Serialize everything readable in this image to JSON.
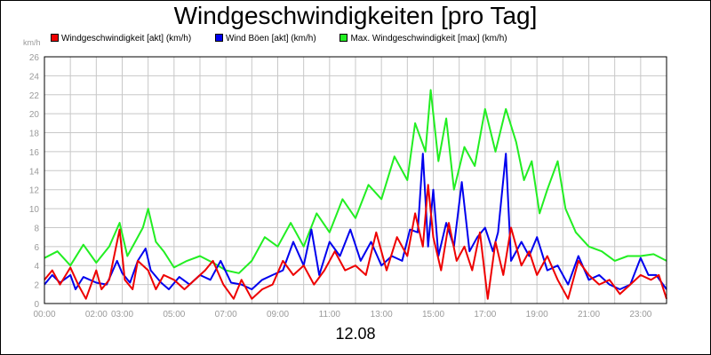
{
  "chart_data": {
    "type": "line",
    "title": "Windgeschwindigkeiten [pro Tag]",
    "date_label": "12.08",
    "y_unit": "km/h",
    "ylim": [
      0,
      26
    ],
    "y_ticks": [
      "0",
      "2",
      "4",
      "6",
      "8",
      "10",
      "12",
      "14",
      "16",
      "18",
      "20",
      "22",
      "24",
      "26"
    ],
    "x_range_hours": [
      0,
      24
    ],
    "x_ticks": [
      {
        "label": "00:00",
        "h": 0
      },
      {
        "label": "02:00",
        "h": 2
      },
      {
        "label": "03:00",
        "h": 3
      },
      {
        "label": "05:00",
        "h": 5
      },
      {
        "label": "07:00",
        "h": 7
      },
      {
        "label": "09:00",
        "h": 9
      },
      {
        "label": "11:00",
        "h": 11
      },
      {
        "label": "13:00",
        "h": 13
      },
      {
        "label": "15:00",
        "h": 15
      },
      {
        "label": "17:00",
        "h": 17
      },
      {
        "label": "19:00",
        "h": 19
      },
      {
        "label": "21:00",
        "h": 21
      },
      {
        "label": "23:00",
        "h": 23
      }
    ],
    "grid": true,
    "legend_position": "top-left",
    "series": [
      {
        "name": "Max. Windgeschwindigkeit [max] (km/h)",
        "color": "#22ee22",
        "points": [
          [
            0,
            4.8
          ],
          [
            0.5,
            5.5
          ],
          [
            1,
            4.0
          ],
          [
            1.5,
            6.2
          ],
          [
            2,
            4.3
          ],
          [
            2.5,
            6.0
          ],
          [
            2.9,
            8.5
          ],
          [
            3.2,
            5.0
          ],
          [
            3.5,
            6.5
          ],
          [
            3.8,
            8.0
          ],
          [
            4.0,
            10.0
          ],
          [
            4.3,
            6.5
          ],
          [
            4.6,
            5.5
          ],
          [
            5.0,
            3.8
          ],
          [
            5.5,
            4.5
          ],
          [
            6.0,
            5.0
          ],
          [
            6.5,
            4.3
          ],
          [
            7.0,
            3.5
          ],
          [
            7.5,
            3.2
          ],
          [
            8.0,
            4.5
          ],
          [
            8.5,
            7.0
          ],
          [
            9.0,
            6.0
          ],
          [
            9.5,
            8.5
          ],
          [
            10.0,
            6.0
          ],
          [
            10.5,
            9.5
          ],
          [
            11.0,
            7.5
          ],
          [
            11.5,
            11.0
          ],
          [
            12.0,
            9.0
          ],
          [
            12.5,
            12.5
          ],
          [
            13.0,
            11.0
          ],
          [
            13.5,
            15.5
          ],
          [
            14.0,
            13.0
          ],
          [
            14.3,
            19.0
          ],
          [
            14.7,
            16.0
          ],
          [
            14.9,
            22.5
          ],
          [
            15.2,
            15.0
          ],
          [
            15.5,
            19.5
          ],
          [
            15.8,
            12.0
          ],
          [
            16.2,
            16.5
          ],
          [
            16.6,
            14.5
          ],
          [
            17.0,
            20.5
          ],
          [
            17.4,
            16.0
          ],
          [
            17.8,
            20.5
          ],
          [
            18.2,
            17.0
          ],
          [
            18.5,
            13.0
          ],
          [
            18.8,
            15.0
          ],
          [
            19.1,
            9.5
          ],
          [
            19.4,
            12.0
          ],
          [
            19.8,
            15.0
          ],
          [
            20.1,
            10.0
          ],
          [
            20.5,
            7.5
          ],
          [
            21.0,
            6.0
          ],
          [
            21.5,
            5.5
          ],
          [
            22.0,
            4.5
          ],
          [
            22.5,
            5.0
          ],
          [
            23.0,
            5.0
          ],
          [
            23.5,
            5.2
          ],
          [
            24.0,
            4.5
          ]
        ]
      },
      {
        "name": "Wind Böen [akt] (km/h)",
        "color": "#0000ee",
        "points": [
          [
            0,
            2.0
          ],
          [
            0.3,
            3.0
          ],
          [
            0.6,
            2.2
          ],
          [
            1.0,
            3.0
          ],
          [
            1.2,
            1.5
          ],
          [
            1.5,
            2.8
          ],
          [
            2.0,
            2.2
          ],
          [
            2.4,
            2.0
          ],
          [
            2.8,
            4.5
          ],
          [
            3.0,
            3.2
          ],
          [
            3.3,
            2.2
          ],
          [
            3.6,
            4.5
          ],
          [
            3.9,
            5.8
          ],
          [
            4.1,
            3.5
          ],
          [
            4.5,
            2.2
          ],
          [
            4.8,
            1.5
          ],
          [
            5.2,
            2.8
          ],
          [
            5.6,
            2.0
          ],
          [
            6.0,
            3.0
          ],
          [
            6.4,
            2.5
          ],
          [
            6.8,
            4.5
          ],
          [
            7.2,
            2.2
          ],
          [
            7.6,
            2.0
          ],
          [
            8.0,
            1.5
          ],
          [
            8.4,
            2.5
          ],
          [
            8.8,
            3.0
          ],
          [
            9.2,
            3.5
          ],
          [
            9.6,
            6.5
          ],
          [
            10.0,
            4.0
          ],
          [
            10.3,
            7.8
          ],
          [
            10.6,
            3.0
          ],
          [
            11.0,
            6.5
          ],
          [
            11.4,
            5.0
          ],
          [
            11.8,
            7.8
          ],
          [
            12.2,
            4.5
          ],
          [
            12.6,
            6.5
          ],
          [
            13.0,
            4.0
          ],
          [
            13.4,
            5.0
          ],
          [
            13.8,
            4.5
          ],
          [
            14.1,
            7.8
          ],
          [
            14.4,
            7.5
          ],
          [
            14.6,
            15.8
          ],
          [
            14.8,
            6.0
          ],
          [
            15.0,
            12.0
          ],
          [
            15.2,
            5.0
          ],
          [
            15.5,
            8.5
          ],
          [
            15.8,
            6.0
          ],
          [
            16.1,
            12.8
          ],
          [
            16.4,
            5.5
          ],
          [
            16.7,
            7.0
          ],
          [
            17.0,
            8.0
          ],
          [
            17.3,
            5.5
          ],
          [
            17.5,
            7.5
          ],
          [
            17.8,
            15.8
          ],
          [
            18.0,
            4.5
          ],
          [
            18.4,
            6.5
          ],
          [
            18.7,
            5.0
          ],
          [
            19.0,
            7.0
          ],
          [
            19.4,
            3.5
          ],
          [
            19.8,
            4.0
          ],
          [
            20.2,
            2.0
          ],
          [
            20.6,
            5.0
          ],
          [
            21.0,
            2.5
          ],
          [
            21.4,
            3.0
          ],
          [
            21.8,
            2.0
          ],
          [
            22.2,
            1.5
          ],
          [
            22.6,
            2.0
          ],
          [
            23.0,
            4.8
          ],
          [
            23.3,
            3.0
          ],
          [
            23.6,
            3.0
          ],
          [
            24.0,
            1.5
          ]
        ]
      },
      {
        "name": "Windgeschwindigkeit [akt] (km/h)",
        "color": "#ee0000",
        "points": [
          [
            0,
            2.5
          ],
          [
            0.3,
            3.5
          ],
          [
            0.6,
            2.0
          ],
          [
            1.0,
            3.8
          ],
          [
            1.3,
            2.0
          ],
          [
            1.6,
            0.5
          ],
          [
            2.0,
            3.5
          ],
          [
            2.2,
            1.5
          ],
          [
            2.5,
            2.5
          ],
          [
            2.9,
            7.8
          ],
          [
            3.1,
            2.5
          ],
          [
            3.4,
            1.5
          ],
          [
            3.6,
            4.5
          ],
          [
            4.0,
            3.5
          ],
          [
            4.3,
            1.5
          ],
          [
            4.6,
            3.0
          ],
          [
            5.0,
            2.5
          ],
          [
            5.4,
            1.5
          ],
          [
            5.8,
            2.5
          ],
          [
            6.2,
            3.5
          ],
          [
            6.5,
            4.5
          ],
          [
            6.9,
            2.0
          ],
          [
            7.3,
            0.5
          ],
          [
            7.6,
            2.5
          ],
          [
            8.0,
            0.5
          ],
          [
            8.4,
            1.5
          ],
          [
            8.8,
            2.0
          ],
          [
            9.2,
            4.5
          ],
          [
            9.6,
            3.0
          ],
          [
            10.0,
            4.0
          ],
          [
            10.4,
            2.0
          ],
          [
            10.8,
            3.5
          ],
          [
            11.2,
            5.5
          ],
          [
            11.6,
            3.5
          ],
          [
            12.0,
            4.0
          ],
          [
            12.4,
            3.0
          ],
          [
            12.8,
            7.5
          ],
          [
            13.2,
            3.5
          ],
          [
            13.6,
            7.0
          ],
          [
            14.0,
            5.0
          ],
          [
            14.3,
            9.5
          ],
          [
            14.6,
            6.0
          ],
          [
            14.8,
            12.5
          ],
          [
            15.0,
            7.0
          ],
          [
            15.3,
            3.5
          ],
          [
            15.6,
            8.5
          ],
          [
            15.9,
            4.5
          ],
          [
            16.2,
            6.0
          ],
          [
            16.5,
            3.5
          ],
          [
            16.8,
            7.5
          ],
          [
            17.1,
            0.5
          ],
          [
            17.4,
            6.5
          ],
          [
            17.7,
            3.0
          ],
          [
            18.0,
            8.0
          ],
          [
            18.4,
            4.0
          ],
          [
            18.7,
            5.5
          ],
          [
            19.0,
            3.0
          ],
          [
            19.4,
            5.0
          ],
          [
            19.8,
            2.5
          ],
          [
            20.2,
            0.5
          ],
          [
            20.6,
            4.5
          ],
          [
            21.0,
            3.0
          ],
          [
            21.4,
            2.0
          ],
          [
            21.8,
            2.5
          ],
          [
            22.2,
            1.0
          ],
          [
            22.6,
            2.0
          ],
          [
            23.0,
            3.0
          ],
          [
            23.4,
            2.5
          ],
          [
            23.7,
            3.0
          ],
          [
            24.0,
            0.5
          ]
        ]
      }
    ]
  }
}
